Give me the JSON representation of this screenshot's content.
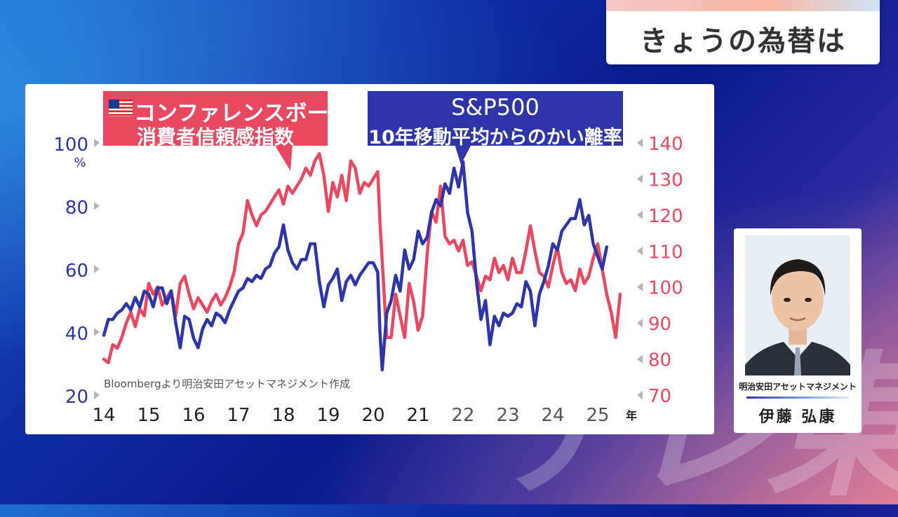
{
  "topic": {
    "title": "きょうの為替は"
  },
  "watermark": "テレ東",
  "person": {
    "company": "明治安田アセットマネジメント",
    "name": "伊藤 弘康"
  },
  "colors": {
    "pink": "#e84860",
    "blue": "#2d35a8"
  },
  "chart_data": {
    "type": "line",
    "source": "Bloombergより明治安田アセットマネジメント作成",
    "x_ticks": [
      "14",
      "15",
      "16",
      "17",
      "18",
      "19",
      "20",
      "21",
      "22",
      "23",
      "24",
      "25"
    ],
    "x_unit": "年",
    "xlim": [
      2014,
      2025.5
    ],
    "left_axis": {
      "ticks": [
        "20",
        "40",
        "60",
        "80",
        "100"
      ],
      "unit": "%",
      "range": [
        20,
        100
      ]
    },
    "right_axis": {
      "ticks": [
        "70",
        "80",
        "90",
        "100",
        "110",
        "120",
        "130",
        "140"
      ],
      "range": [
        70,
        140
      ]
    },
    "series": [
      {
        "name_line1": "コンファレンスボード",
        "name_line2": "消費者信頼感指数",
        "axis": "right",
        "color": "#e84860",
        "points": [
          [
            2014.0,
            80
          ],
          [
            2014.1,
            79
          ],
          [
            2014.2,
            84
          ],
          [
            2014.3,
            83
          ],
          [
            2014.4,
            86
          ],
          [
            2014.5,
            90
          ],
          [
            2014.6,
            93
          ],
          [
            2014.7,
            89
          ],
          [
            2014.8,
            94
          ],
          [
            2014.9,
            92
          ],
          [
            2015.0,
            101
          ],
          [
            2015.1,
            98
          ],
          [
            2015.2,
            100
          ],
          [
            2015.3,
            95
          ],
          [
            2015.4,
            97
          ],
          [
            2015.5,
            99
          ],
          [
            2015.6,
            92
          ],
          [
            2015.7,
            101
          ],
          [
            2015.8,
            103
          ],
          [
            2015.9,
            98
          ],
          [
            2016.0,
            94
          ],
          [
            2016.1,
            97
          ],
          [
            2016.2,
            95
          ],
          [
            2016.3,
            93
          ],
          [
            2016.4,
            96
          ],
          [
            2016.5,
            98
          ],
          [
            2016.6,
            95
          ],
          [
            2016.7,
            97
          ],
          [
            2016.8,
            100
          ],
          [
            2016.9,
            104
          ],
          [
            2017.0,
            112
          ],
          [
            2017.1,
            115
          ],
          [
            2017.2,
            124
          ],
          [
            2017.3,
            120
          ],
          [
            2017.4,
            117
          ],
          [
            2017.5,
            120
          ],
          [
            2017.6,
            121
          ],
          [
            2017.7,
            123
          ],
          [
            2017.8,
            125
          ],
          [
            2017.9,
            127
          ],
          [
            2018.0,
            123
          ],
          [
            2018.1,
            128
          ],
          [
            2018.2,
            126
          ],
          [
            2018.3,
            128
          ],
          [
            2018.4,
            130
          ],
          [
            2018.5,
            133
          ],
          [
            2018.6,
            131
          ],
          [
            2018.7,
            135
          ],
          [
            2018.8,
            137
          ],
          [
            2018.9,
            131
          ],
          [
            2019.0,
            121
          ],
          [
            2019.1,
            129
          ],
          [
            2019.2,
            125
          ],
          [
            2019.3,
            131
          ],
          [
            2019.4,
            124
          ],
          [
            2019.5,
            135
          ],
          [
            2019.6,
            133
          ],
          [
            2019.7,
            126
          ],
          [
            2019.8,
            129
          ],
          [
            2019.9,
            128
          ],
          [
            2020.0,
            130
          ],
          [
            2020.1,
            132
          ],
          [
            2020.15,
            118
          ],
          [
            2020.3,
            86
          ],
          [
            2020.4,
            86
          ],
          [
            2020.5,
            98
          ],
          [
            2020.6,
            92
          ],
          [
            2020.7,
            86
          ],
          [
            2020.8,
            101
          ],
          [
            2020.9,
            96
          ],
          [
            2021.0,
            88
          ],
          [
            2021.1,
            92
          ],
          [
            2021.2,
            109
          ],
          [
            2021.3,
            121
          ],
          [
            2021.4,
            118
          ],
          [
            2021.5,
            128
          ],
          [
            2021.6,
            114
          ],
          [
            2021.7,
            112
          ],
          [
            2021.8,
            113
          ],
          [
            2021.9,
            110
          ],
          [
            2022.0,
            113
          ],
          [
            2022.1,
            106
          ],
          [
            2022.2,
            107
          ],
          [
            2022.3,
            103
          ],
          [
            2022.4,
            99
          ],
          [
            2022.5,
            103
          ],
          [
            2022.6,
            102
          ],
          [
            2022.7,
            108
          ],
          [
            2022.8,
            104
          ],
          [
            2022.9,
            106
          ],
          [
            2023.0,
            102
          ],
          [
            2023.1,
            108
          ],
          [
            2023.2,
            104
          ],
          [
            2023.3,
            104
          ],
          [
            2023.4,
            110
          ],
          [
            2023.5,
            117
          ],
          [
            2023.6,
            110
          ],
          [
            2023.7,
            104
          ],
          [
            2023.8,
            103
          ],
          [
            2023.9,
            100
          ],
          [
            2024.0,
            106
          ],
          [
            2024.1,
            111
          ],
          [
            2024.2,
            104
          ],
          [
            2024.3,
            101
          ],
          [
            2024.4,
            102
          ],
          [
            2024.5,
            99
          ],
          [
            2024.6,
            105
          ],
          [
            2024.7,
            101
          ],
          [
            2024.8,
            103
          ],
          [
            2024.9,
            108
          ],
          [
            2025.0,
            112
          ],
          [
            2025.1,
            105
          ],
          [
            2025.2,
            98
          ],
          [
            2025.3,
            93
          ],
          [
            2025.4,
            86
          ],
          [
            2025.5,
            98
          ]
        ]
      },
      {
        "name_line1": "S&P500",
        "name_line2": "10年移動平均からのかい離率",
        "axis": "left",
        "color": "#2d35a8",
        "points": [
          [
            2014.0,
            39
          ],
          [
            2014.1,
            44
          ],
          [
            2014.2,
            44
          ],
          [
            2014.3,
            46
          ],
          [
            2014.4,
            47
          ],
          [
            2014.5,
            49
          ],
          [
            2014.6,
            47
          ],
          [
            2014.7,
            51
          ],
          [
            2014.8,
            48
          ],
          [
            2014.9,
            53
          ],
          [
            2015.0,
            52
          ],
          [
            2015.1,
            48
          ],
          [
            2015.2,
            54
          ],
          [
            2015.3,
            54
          ],
          [
            2015.4,
            49
          ],
          [
            2015.5,
            53
          ],
          [
            2015.6,
            43
          ],
          [
            2015.7,
            35
          ],
          [
            2015.8,
            45
          ],
          [
            2015.9,
            44
          ],
          [
            2016.0,
            38
          ],
          [
            2016.1,
            35
          ],
          [
            2016.2,
            41
          ],
          [
            2016.3,
            44
          ],
          [
            2016.4,
            42
          ],
          [
            2016.5,
            46
          ],
          [
            2016.6,
            45
          ],
          [
            2016.7,
            43
          ],
          [
            2016.8,
            47
          ],
          [
            2016.9,
            50
          ],
          [
            2017.0,
            53
          ],
          [
            2017.1,
            54
          ],
          [
            2017.2,
            57
          ],
          [
            2017.3,
            56
          ],
          [
            2017.4,
            58
          ],
          [
            2017.5,
            57
          ],
          [
            2017.6,
            60
          ],
          [
            2017.7,
            61
          ],
          [
            2017.8,
            65
          ],
          [
            2017.9,
            67
          ],
          [
            2018.0,
            74
          ],
          [
            2018.1,
            66
          ],
          [
            2018.2,
            62
          ],
          [
            2018.3,
            60
          ],
          [
            2018.4,
            63
          ],
          [
            2018.5,
            63
          ],
          [
            2018.6,
            68
          ],
          [
            2018.7,
            68
          ],
          [
            2018.8,
            56
          ],
          [
            2018.9,
            48
          ],
          [
            2019.0,
            55
          ],
          [
            2019.1,
            57
          ],
          [
            2019.2,
            60
          ],
          [
            2019.3,
            50
          ],
          [
            2019.4,
            56
          ],
          [
            2019.5,
            58
          ],
          [
            2019.6,
            55
          ],
          [
            2019.7,
            58
          ],
          [
            2019.8,
            60
          ],
          [
            2019.9,
            62
          ],
          [
            2020.0,
            62
          ],
          [
            2020.1,
            59
          ],
          [
            2020.15,
            40
          ],
          [
            2020.2,
            28
          ],
          [
            2020.3,
            46
          ],
          [
            2020.4,
            50
          ],
          [
            2020.5,
            58
          ],
          [
            2020.6,
            53
          ],
          [
            2020.7,
            66
          ],
          [
            2020.8,
            60
          ],
          [
            2020.9,
            63
          ],
          [
            2021.0,
            72
          ],
          [
            2021.1,
            68
          ],
          [
            2021.2,
            70
          ],
          [
            2021.3,
            78
          ],
          [
            2021.4,
            82
          ],
          [
            2021.5,
            80
          ],
          [
            2021.6,
            87
          ],
          [
            2021.7,
            84
          ],
          [
            2021.8,
            92
          ],
          [
            2021.9,
            86
          ],
          [
            2022.0,
            94
          ],
          [
            2022.1,
            78
          ],
          [
            2022.2,
            72
          ],
          [
            2022.3,
            56
          ],
          [
            2022.4,
            44
          ],
          [
            2022.5,
            50
          ],
          [
            2022.6,
            36
          ],
          [
            2022.7,
            45
          ],
          [
            2022.8,
            42
          ],
          [
            2022.9,
            46
          ],
          [
            2023.0,
            45
          ],
          [
            2023.1,
            46
          ],
          [
            2023.2,
            49
          ],
          [
            2023.3,
            48
          ],
          [
            2023.4,
            56
          ],
          [
            2023.5,
            53
          ],
          [
            2023.6,
            42
          ],
          [
            2023.7,
            52
          ],
          [
            2023.8,
            56
          ],
          [
            2023.9,
            61
          ],
          [
            2024.0,
            68
          ],
          [
            2024.1,
            66
          ],
          [
            2024.2,
            72
          ],
          [
            2024.3,
            74
          ],
          [
            2024.4,
            76
          ],
          [
            2024.5,
            76
          ],
          [
            2024.6,
            82
          ],
          [
            2024.7,
            74
          ],
          [
            2024.8,
            77
          ],
          [
            2024.9,
            68
          ],
          [
            2025.0,
            64
          ],
          [
            2025.1,
            60
          ],
          [
            2025.2,
            67
          ]
        ]
      }
    ]
  }
}
